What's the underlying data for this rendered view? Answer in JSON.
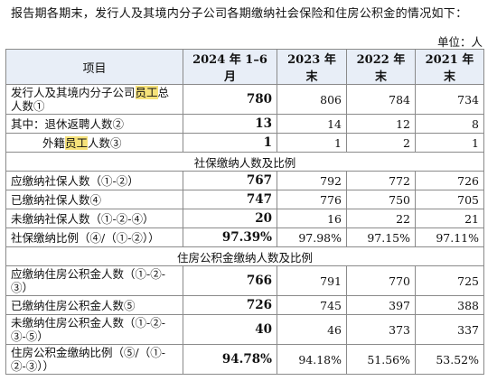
{
  "intro": "报告期各期末，发行人及其境内分子公司各期缴纳社会保险和住房公积金的情况如下：",
  "unit": "单位：人",
  "headers": [
    "项目",
    "2024 年 1–6 月",
    "2023 年末",
    "2022 年末",
    "2021 年末"
  ],
  "rows": {
    "r1": {
      "label_pre": "发行人及其境内分子公司",
      "label_hl": "员工",
      "label_post": "总人数①",
      "v": [
        "780",
        "806",
        "784",
        "734"
      ]
    },
    "r2": {
      "label": "其中：退休返聘人数②",
      "v": [
        "13",
        "14",
        "12",
        "8"
      ]
    },
    "r3": {
      "label_pre": "外籍",
      "label_hl": "员工",
      "label_post": "人数③",
      "v": [
        "1",
        "1",
        "2",
        "1"
      ]
    },
    "sec1": "社保缴纳人数及比例",
    "r4": {
      "label": "应缴纳社保人数（①-②）",
      "v": [
        "767",
        "792",
        "772",
        "726"
      ]
    },
    "r5": {
      "label": "已缴纳社保人数④",
      "v": [
        "747",
        "776",
        "750",
        "705"
      ]
    },
    "r6": {
      "label": "未缴纳社保人数（①-②-④）",
      "v": [
        "20",
        "16",
        "22",
        "21"
      ]
    },
    "r7": {
      "label": "社保缴纳比例（④/（①-②））",
      "v": [
        "97.39%",
        "97.98%",
        "97.15%",
        "97.11%"
      ]
    },
    "sec2": "住房公积金缴纳人数及比例",
    "r8": {
      "label": "应缴纳住房公积金人数（①-②-③）",
      "v": [
        "766",
        "791",
        "770",
        "725"
      ]
    },
    "r9": {
      "label": "已缴纳住房公积金人数⑤",
      "v": [
        "726",
        "745",
        "397",
        "388"
      ]
    },
    "r10": {
      "label": "未缴纳住房公积金人数（①-②-③-⑤）",
      "v": [
        "40",
        "46",
        "373",
        "337"
      ]
    },
    "r11": {
      "label": "住房公积金缴纳比例（⑤/（①-②-③））",
      "v": [
        "94.78%",
        "94.18%",
        "51.56%",
        "53.52%"
      ]
    }
  },
  "colors": {
    "header_bg": "#e8eef7",
    "highlight": "#f6e27a",
    "border": "#8a8a8a"
  }
}
